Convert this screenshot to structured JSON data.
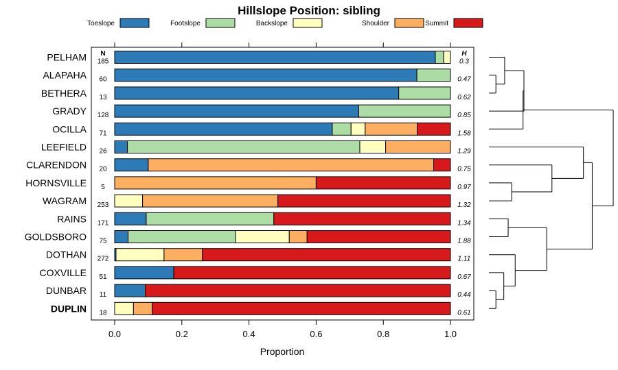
{
  "chart_data": {
    "type": "bar",
    "stacked": true,
    "orientation": "horizontal",
    "title": "Hillslope Position: sibling",
    "xlabel": "Proportion",
    "xlim": [
      0,
      1
    ],
    "x_ticks": [
      "0.0",
      "0.2",
      "0.4",
      "0.6",
      "0.8",
      "1.0"
    ],
    "grid": false,
    "legend_position": "top",
    "n_header": "N",
    "h_header": "H",
    "highlighted_category": "DUPLIN",
    "series": [
      {
        "name": "Toeslope",
        "color": "#2c7bb6"
      },
      {
        "name": "Footslope",
        "color": "#abdda4"
      },
      {
        "name": "Backslope",
        "color": "#ffffbf"
      },
      {
        "name": "Shoulder",
        "color": "#fdae61"
      },
      {
        "name": "Summit",
        "color": "#d7191c"
      }
    ],
    "rows": [
      {
        "category": "PELHAM",
        "n": "185",
        "h": "0.3",
        "values": [
          0.955,
          0.025,
          0.02,
          0,
          0
        ]
      },
      {
        "category": "ALAPAHA",
        "n": "60",
        "h": "0.47",
        "values": [
          0.9,
          0.1,
          0,
          0,
          0
        ]
      },
      {
        "category": "BETHERA",
        "n": "13",
        "h": "0.62",
        "values": [
          0.846,
          0.154,
          0,
          0,
          0
        ]
      },
      {
        "category": "GRADY",
        "n": "128",
        "h": "0.85",
        "values": [
          0.727,
          0.273,
          0,
          0,
          0
        ]
      },
      {
        "category": "OCILLA",
        "n": "71",
        "h": "1.58",
        "values": [
          0.648,
          0.056,
          0.042,
          0.155,
          0.099
        ]
      },
      {
        "category": "LEEFIELD",
        "n": "26",
        "h": "1.29",
        "values": [
          0.038,
          0.692,
          0.077,
          0.193,
          0
        ]
      },
      {
        "category": "CLARENDON",
        "n": "20",
        "h": "0.75",
        "values": [
          0.1,
          0,
          0,
          0.85,
          0.05
        ]
      },
      {
        "category": "HORNSVILLE",
        "n": "5",
        "h": "0.97",
        "values": [
          0,
          0,
          0,
          0.6,
          0.4
        ]
      },
      {
        "category": "WAGRAM",
        "n": "253",
        "h": "1.32",
        "values": [
          0,
          0,
          0.083,
          0.403,
          0.514
        ]
      },
      {
        "category": "RAINS",
        "n": "171",
        "h": "1.34",
        "values": [
          0.094,
          0.38,
          0,
          0,
          0.526
        ]
      },
      {
        "category": "GOLDSBORO",
        "n": "75",
        "h": "1.88",
        "values": [
          0.04,
          0.32,
          0.16,
          0.053,
          0.427
        ]
      },
      {
        "category": "DOTHAN",
        "n": "272",
        "h": "1.11",
        "values": [
          0.004,
          0,
          0.143,
          0.114,
          0.739
        ]
      },
      {
        "category": "COXVILLE",
        "n": "51",
        "h": "0.67",
        "values": [
          0.176,
          0,
          0,
          0,
          0.824
        ]
      },
      {
        "category": "DUNBAR",
        "n": "11",
        "h": "0.44",
        "values": [
          0.091,
          0,
          0,
          0,
          0.909
        ]
      },
      {
        "category": "DUPLIN",
        "n": "18",
        "h": "0.61",
        "values": [
          0,
          0,
          0.056,
          0.056,
          0.888
        ]
      }
    ],
    "dendrogram": {
      "type": "dendrogram",
      "leaves": [
        "PELHAM",
        "ALAPAHA",
        "BETHERA",
        "GRADY",
        "OCILLA",
        "LEEFIELD",
        "CLARENDON",
        "HORNSVILLE",
        "WAGRAM",
        "RAINS",
        "GOLDSBORO",
        "DOTHAN",
        "COXVILLE",
        "DUNBAR",
        "DUPLIN"
      ],
      "merges": [
        {
          "a": "L1",
          "b": "L2",
          "height": 0.04
        },
        {
          "a": "L0",
          "b": "M0",
          "height": 0.09
        },
        {
          "a": "M1",
          "b": "L3",
          "height": 0.2
        },
        {
          "a": "M2",
          "b": "L4",
          "height": 0.195
        },
        {
          "a": "L7",
          "b": "L8",
          "height": 0.13
        },
        {
          "a": "L6",
          "b": "M4",
          "height": 0.36
        },
        {
          "a": "L5",
          "b": "M5",
          "height": 0.54
        },
        {
          "a": "L13",
          "b": "L14",
          "height": 0.04
        },
        {
          "a": "L12",
          "b": "M7",
          "height": 0.085
        },
        {
          "a": "L11",
          "b": "M8",
          "height": 0.15
        },
        {
          "a": "L9",
          "b": "L10",
          "height": 0.11
        },
        {
          "a": "M10",
          "b": "M9",
          "height": 0.33
        },
        {
          "a": "M6",
          "b": "M11",
          "height": 0.59
        },
        {
          "a": "M3",
          "b": "M12",
          "height": 0.71
        }
      ]
    }
  }
}
